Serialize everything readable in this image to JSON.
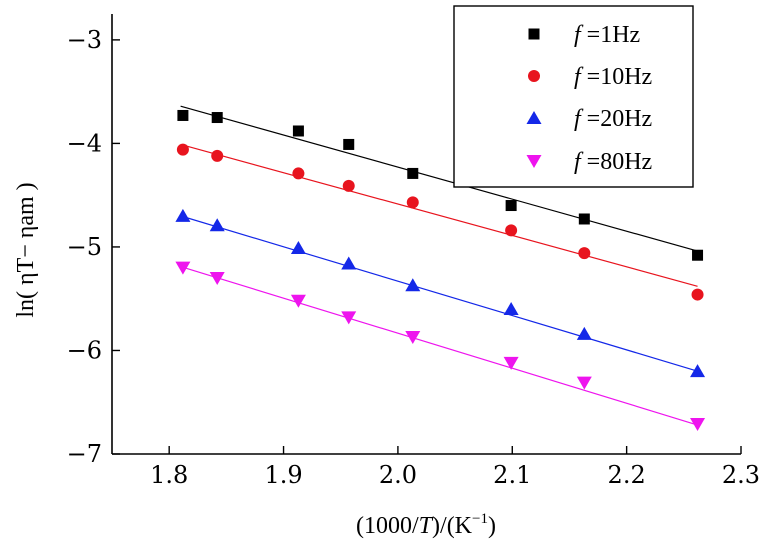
{
  "chart_data": {
    "type": "scatter",
    "title": "",
    "xlabel": "(1000/T)/(K⁻¹)",
    "xlabel_parts": [
      "(1000/",
      "T",
      ")/(K",
      "−1",
      ")"
    ],
    "ylabel": "ln( ηT− ηam )",
    "xlim": [
      1.75,
      2.3
    ],
    "ylim": [
      -7,
      -2.75
    ],
    "xticks": [
      1.8,
      1.9,
      2.0,
      2.1,
      2.2,
      2.3
    ],
    "xtick_labels": [
      "1.8",
      "1.9",
      "2.0",
      "2.1",
      "2.2",
      "2.3"
    ],
    "yticks": [
      -3,
      -4,
      -5,
      -6,
      -7
    ],
    "ytick_labels": [
      "−3",
      "−4",
      "−5",
      "−6",
      "−7"
    ],
    "grid": false,
    "legend_position": "top-right",
    "series": [
      {
        "name": "f =1Hz",
        "name_parts": [
          "f",
          " =1Hz"
        ],
        "marker": "square",
        "color": "#000000",
        "x": [
          1.812,
          1.842,
          1.913,
          1.957,
          2.013,
          2.099,
          2.163,
          2.262
        ],
        "y": [
          -3.73,
          -3.75,
          -3.88,
          -4.01,
          -4.29,
          -4.6,
          -4.73,
          -5.08
        ],
        "fit": {
          "x": [
            1.81,
            2.262
          ],
          "y": [
            -3.64,
            -5.04
          ]
        }
      },
      {
        "name": "f =10Hz",
        "name_parts": [
          "f",
          " =10Hz"
        ],
        "marker": "circle",
        "color": "#e8141e",
        "x": [
          1.812,
          1.842,
          1.913,
          1.957,
          2.013,
          2.099,
          2.163,
          2.262
        ],
        "y": [
          -4.06,
          -4.12,
          -4.29,
          -4.41,
          -4.57,
          -4.84,
          -5.06,
          -5.46
        ],
        "fit": {
          "x": [
            1.81,
            2.262
          ],
          "y": [
            -4.01,
            -5.38
          ]
        }
      },
      {
        "name": "f =20Hz",
        "name_parts": [
          "f",
          " =20Hz"
        ],
        "marker": "triangle-up",
        "color": "#1428e8",
        "x": [
          1.812,
          1.842,
          1.913,
          1.957,
          2.013,
          2.099,
          2.163,
          2.262
        ],
        "y": [
          -4.7,
          -4.79,
          -5.01,
          -5.16,
          -5.37,
          -5.6,
          -5.84,
          -6.2
        ],
        "fit": {
          "x": [
            1.81,
            2.262
          ],
          "y": [
            -4.7,
            -6.2
          ]
        }
      },
      {
        "name": "f =80Hz",
        "name_parts": [
          "f",
          " =80Hz"
        ],
        "marker": "triangle-down",
        "color": "#ee14ee",
        "x": [
          1.812,
          1.842,
          1.913,
          1.957,
          2.013,
          2.099,
          2.163,
          2.262
        ],
        "y": [
          -5.2,
          -5.3,
          -5.52,
          -5.68,
          -5.87,
          -6.12,
          -6.31,
          -6.71
        ],
        "fit": {
          "x": [
            1.81,
            2.262
          ],
          "y": [
            -5.19,
            -6.72
          ]
        }
      }
    ]
  }
}
